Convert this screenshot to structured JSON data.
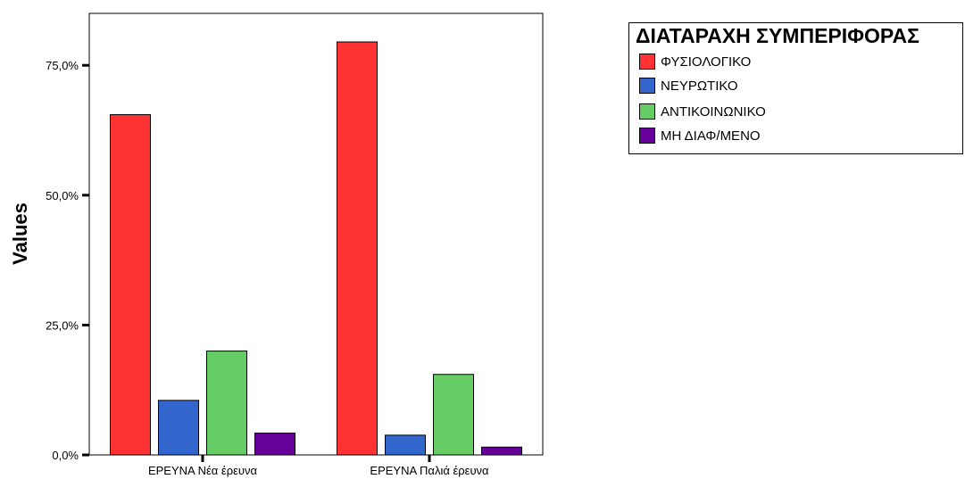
{
  "chart_data": {
    "type": "bar",
    "ylabel": "Values",
    "xlabel": "",
    "ylim": [
      0,
      85
    ],
    "yticks": [
      "0,0%",
      "25,0%",
      "50,0%",
      "75,0%"
    ],
    "ytick_values": [
      0,
      25,
      50,
      75
    ],
    "categories": [
      "ΕΡΕΥΝΑ Νέα έρευνα",
      "ΕΡΕΥΝΑ Παλιά έρευνα"
    ],
    "legend_title": "ΔΙΑΤΑΡΑΧΗ ΣΥΜΠΕΡΙΦΟΡΑΣ",
    "legend_placement": "top-right",
    "grid": false,
    "series": [
      {
        "name": "ΦΥΣΙΟΛΟΓΙΚΟ",
        "color": "#ff3333",
        "values": [
          65.5,
          79.5
        ]
      },
      {
        "name": "ΝΕΥΡΩΤΙΚΟ",
        "color": "#3366cc",
        "values": [
          10.5,
          3.8
        ]
      },
      {
        "name": "ΑΝΤΙΚΟΙΝΩΝΙΚΟ",
        "color": "#66cc66",
        "values": [
          20.0,
          15.5
        ]
      },
      {
        "name": "ΜΗ ΔΙΑΦ/ΜΕΝΟ",
        "color": "#660099",
        "values": [
          4.2,
          1.5
        ]
      }
    ]
  }
}
